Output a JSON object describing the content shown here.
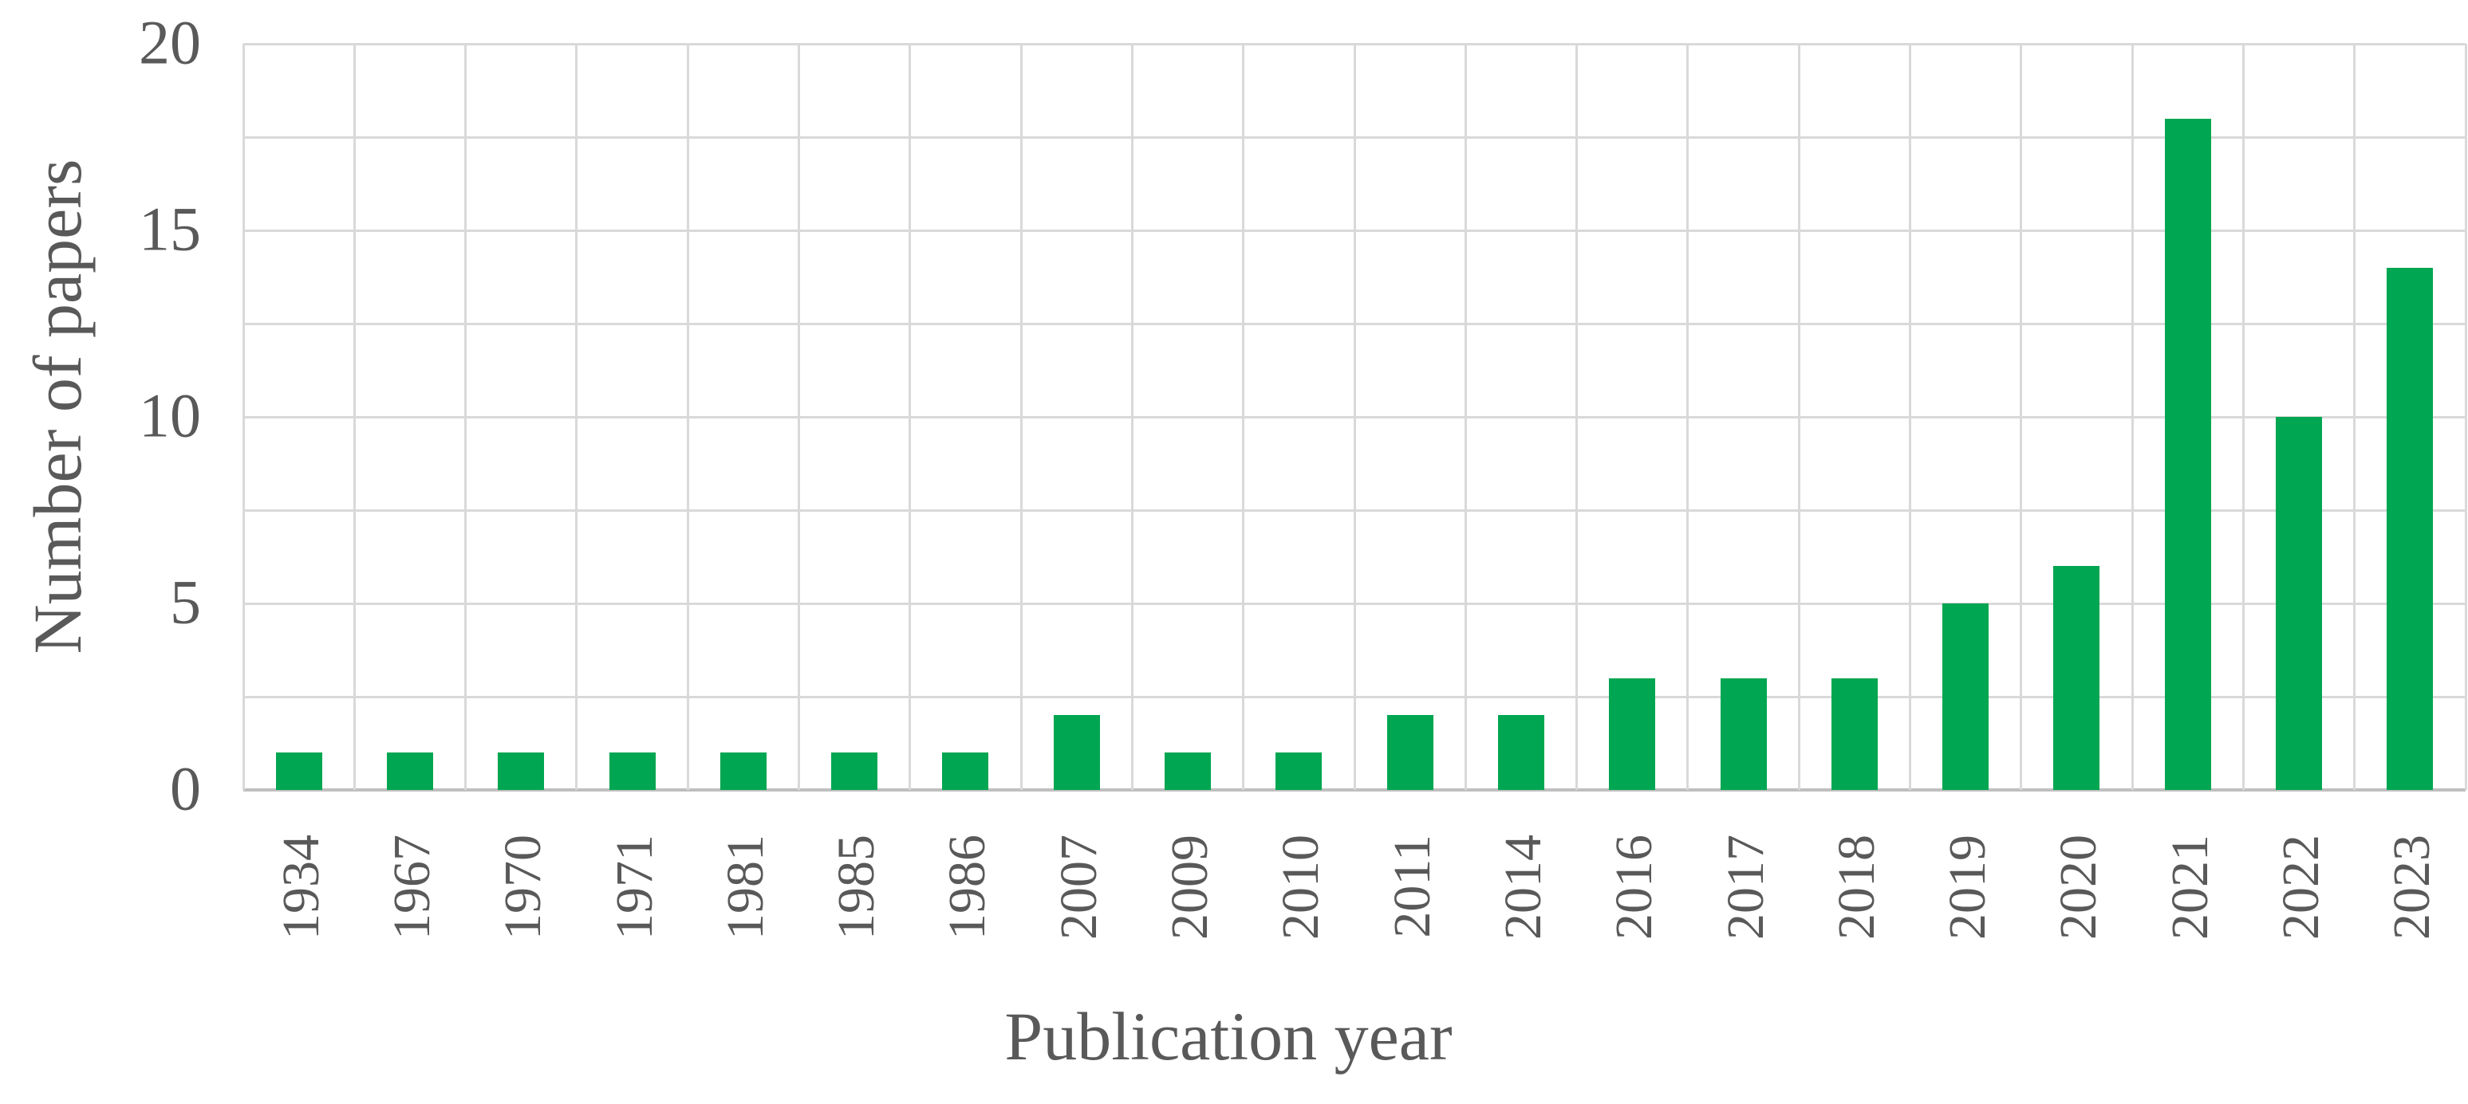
{
  "figure": {
    "background": "#FFFFFF"
  },
  "chart_data": {
    "type": "bar",
    "title": "",
    "xlabel": "Publication year",
    "ylabel": "Number of papers",
    "categories": [
      "1934",
      "1967",
      "1970",
      "1971",
      "1981",
      "1985",
      "1986",
      "2007",
      "2009",
      "2010",
      "2011",
      "2014",
      "2016",
      "2017",
      "2018",
      "2019",
      "2020",
      "2021",
      "2022",
      "2023"
    ],
    "values": [
      1,
      1,
      1,
      1,
      1,
      1,
      1,
      2,
      1,
      1,
      2,
      2,
      3,
      3,
      3,
      5,
      6,
      18,
      10,
      14
    ],
    "series_name": "Number of papers",
    "ylim": [
      0,
      20
    ],
    "ytick_labels": [
      0,
      5,
      10,
      15,
      20
    ],
    "gridline_step": 2.5,
    "grid": "horizontal lines every 2.5 units and vertical lines at category boundaries",
    "legend": "none",
    "bar_color": "#00A651",
    "gridline_color": "#D9D9D9",
    "axis_line_color": "#BFBFBF",
    "text_color": "#595959"
  }
}
